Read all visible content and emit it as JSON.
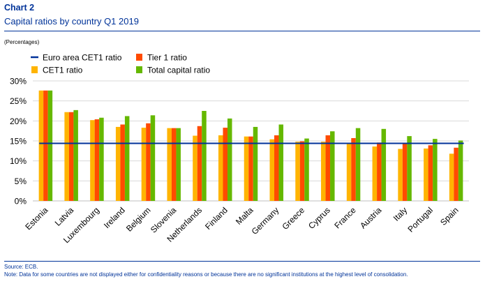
{
  "header": {
    "chart_label": "Chart 2",
    "title": "Capital ratios by country Q1 2019",
    "units": "(Percentages)"
  },
  "footer": {
    "source": "Source: ECB.",
    "note": "Note: Data for some countries are not displayed either for confidentiality reasons or because there are no significant institutions at the highest level of consolidation."
  },
  "chart_data": {
    "type": "bar",
    "title": "Capital ratios by country Q1 2019",
    "ylabel": "(Percentages)",
    "xlabel": "",
    "ylim": [
      0,
      30
    ],
    "yticks": [
      "0%",
      "5%",
      "10%",
      "15%",
      "20%",
      "25%",
      "30%"
    ],
    "grid": true,
    "legend_position": "top-left",
    "categories": [
      "Estonia",
      "Latvia",
      "Luxembourg",
      "Ireland",
      "Belgium",
      "Slovenia",
      "Netherlands",
      "Finland",
      "Malta",
      "Germany",
      "Greece",
      "Cyprus",
      "France",
      "Austria",
      "Italy",
      "Portugal",
      "Spain"
    ],
    "series": [
      {
        "name": "CET1 ratio",
        "color": "#ffb400",
        "values": [
          27.6,
          22.2,
          20.2,
          18.5,
          18.3,
          18.2,
          16.3,
          16.4,
          16.1,
          15.4,
          14.8,
          14.8,
          14.5,
          13.6,
          13.0,
          13.1,
          11.8
        ]
      },
      {
        "name": "Tier 1 ratio",
        "color": "#ff4b00",
        "values": [
          27.6,
          22.2,
          20.4,
          19.1,
          19.4,
          18.2,
          18.7,
          18.3,
          16.1,
          16.4,
          14.9,
          16.4,
          15.7,
          14.6,
          14.3,
          13.9,
          13.3
        ]
      },
      {
        "name": "Total capital ratio",
        "color": "#65b800",
        "values": [
          27.6,
          22.7,
          20.8,
          21.2,
          21.4,
          18.2,
          22.5,
          20.6,
          18.5,
          19.1,
          15.6,
          17.4,
          18.2,
          18.0,
          16.2,
          15.5,
          15.1
        ]
      },
      {
        "name": "Euro area CET1 ratio",
        "color": "#003299",
        "type": "line",
        "value": 14.4
      }
    ],
    "legend": [
      {
        "name": "Euro area CET1 ratio",
        "color": "#003299",
        "kind": "line"
      },
      {
        "name": "Tier 1 ratio",
        "color": "#ff4b00",
        "kind": "square"
      },
      {
        "name": "CET1 ratio",
        "color": "#ffb400",
        "kind": "square"
      },
      {
        "name": "Total capital ratio",
        "color": "#65b800",
        "kind": "square"
      }
    ]
  }
}
